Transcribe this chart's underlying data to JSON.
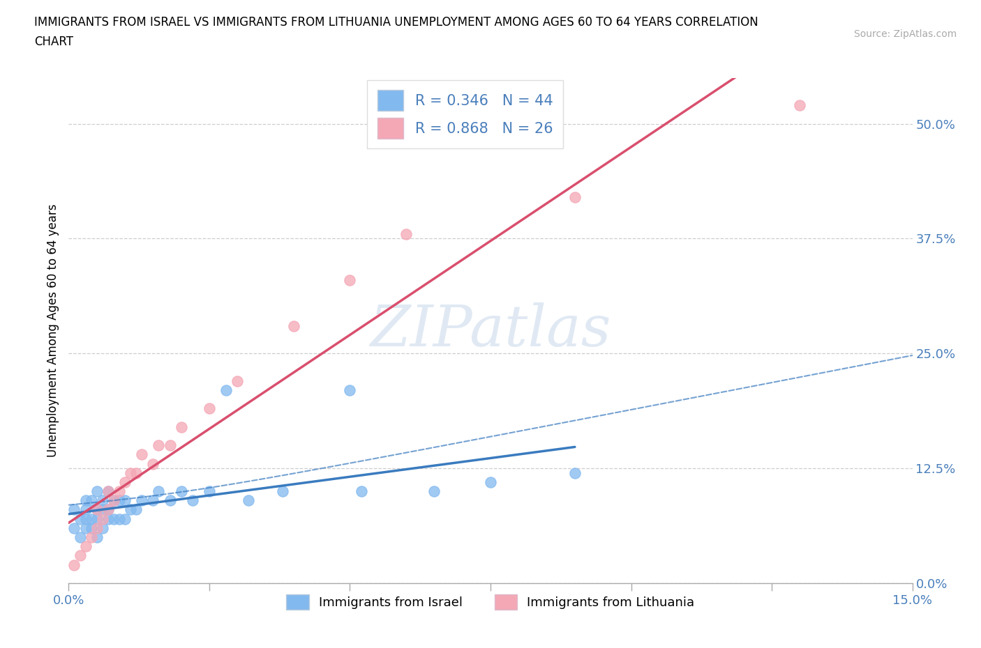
{
  "title": "IMMIGRANTS FROM ISRAEL VS IMMIGRANTS FROM LITHUANIA UNEMPLOYMENT AMONG AGES 60 TO 64 YEARS CORRELATION\nCHART",
  "source_text": "Source: ZipAtlas.com",
  "ylabel": "Unemployment Among Ages 60 to 64 years",
  "xlim": [
    0.0,
    0.15
  ],
  "ylim": [
    0.0,
    0.55
  ],
  "xticks": [
    0.0,
    0.025,
    0.05,
    0.075,
    0.1,
    0.125,
    0.15
  ],
  "xticklabels": [
    "0.0%",
    "",
    "",
    "",
    "",
    "",
    "15.0%"
  ],
  "yticks": [
    0.0,
    0.125,
    0.25,
    0.375,
    0.5
  ],
  "yticklabels": [
    "0.0%",
    "12.5%",
    "25.0%",
    "37.5%",
    "50.0%"
  ],
  "israel_color": "#82b9ef",
  "lithuania_color": "#f4a7b5",
  "israel_line_color": "#3a7bbf",
  "lithuania_line_color": "#d94f6e",
  "legend_label_israel": "R = 0.346   N = 44",
  "legend_label_lithuania": "R = 0.868   N = 26",
  "bottom_legend_israel": "Immigrants from Israel",
  "bottom_legend_lithuania": "Immigrants from Lithuania",
  "israel_x": [
    0.001,
    0.001,
    0.002,
    0.002,
    0.003,
    0.003,
    0.003,
    0.003,
    0.004,
    0.004,
    0.004,
    0.005,
    0.005,
    0.005,
    0.005,
    0.006,
    0.006,
    0.006,
    0.007,
    0.007,
    0.007,
    0.008,
    0.008,
    0.009,
    0.009,
    0.01,
    0.01,
    0.011,
    0.012,
    0.013,
    0.015,
    0.016,
    0.018,
    0.02,
    0.022,
    0.025,
    0.028,
    0.032,
    0.038,
    0.05,
    0.052,
    0.065,
    0.075,
    0.09
  ],
  "israel_y": [
    0.06,
    0.08,
    0.05,
    0.07,
    0.06,
    0.07,
    0.08,
    0.09,
    0.06,
    0.07,
    0.09,
    0.05,
    0.07,
    0.08,
    0.1,
    0.06,
    0.08,
    0.09,
    0.07,
    0.08,
    0.1,
    0.07,
    0.09,
    0.07,
    0.09,
    0.07,
    0.09,
    0.08,
    0.08,
    0.09,
    0.09,
    0.1,
    0.09,
    0.1,
    0.09,
    0.1,
    0.21,
    0.09,
    0.1,
    0.21,
    0.1,
    0.1,
    0.11,
    0.12
  ],
  "lithuania_x": [
    0.001,
    0.002,
    0.003,
    0.004,
    0.005,
    0.005,
    0.006,
    0.007,
    0.007,
    0.008,
    0.009,
    0.01,
    0.011,
    0.012,
    0.013,
    0.015,
    0.016,
    0.018,
    0.02,
    0.025,
    0.03,
    0.04,
    0.05,
    0.06,
    0.09,
    0.13
  ],
  "lithuania_y": [
    0.02,
    0.03,
    0.04,
    0.05,
    0.06,
    0.08,
    0.07,
    0.08,
    0.1,
    0.09,
    0.1,
    0.11,
    0.12,
    0.12,
    0.14,
    0.13,
    0.15,
    0.15,
    0.17,
    0.19,
    0.22,
    0.28,
    0.33,
    0.38,
    0.42,
    0.52
  ],
  "israel_reg_slope": 0.55,
  "israel_reg_intercept": 0.065,
  "lithuania_reg_slope": 3.8,
  "lithuania_reg_intercept": 0.01
}
